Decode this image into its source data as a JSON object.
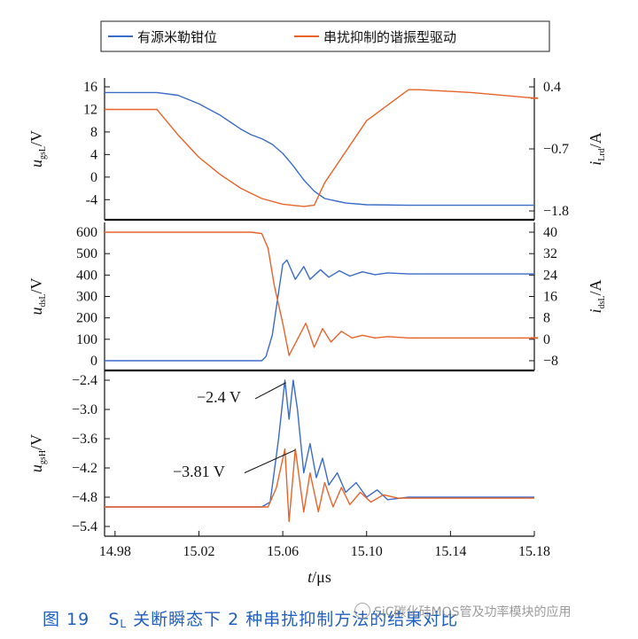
{
  "legend": [
    {
      "name": "有源米勒钳位",
      "color": "#3a6bc8"
    },
    {
      "name": "串扰抑制的谐振型驱动",
      "color": "#e8632a"
    }
  ],
  "caption": {
    "prefix": "图 19",
    "s": "S",
    "l": "L",
    "text": "关断瞬态下 2 种串扰抑制方法的结果对比"
  },
  "watermark": "SiC碳化硅MOS管及功率模块的应用",
  "chart_data": [
    {
      "type": "line",
      "panel": "top",
      "ylabel": {
        "main": "u",
        "sub": "gsL",
        "unit": "/V"
      },
      "y2label": {
        "main": "i",
        "sub": "Lrd",
        "unit": "/A"
      },
      "ylim": [
        -6,
        16
      ],
      "yticks": [
        16,
        12,
        8,
        4,
        0,
        -4
      ],
      "y2lim": [
        -1.8,
        0.4
      ],
      "y2ticks": [
        "0.4",
        "−0.7",
        "−1.8"
      ],
      "xlim": [
        14.975,
        15.18
      ],
      "series": [
        {
          "name": "有源米勒钳位",
          "color": "#3a6bc8",
          "axis": "left",
          "x": [
            14.975,
            15.0,
            15.01,
            15.02,
            15.03,
            15.04,
            15.045,
            15.05,
            15.055,
            15.06,
            15.065,
            15.07,
            15.075,
            15.08,
            15.09,
            15.1,
            15.12,
            15.15,
            15.18
          ],
          "y": [
            15.0,
            15.0,
            14.5,
            13.0,
            11.0,
            8.5,
            7.5,
            6.8,
            5.8,
            4.2,
            2.0,
            -0.5,
            -2.5,
            -3.8,
            -4.6,
            -4.9,
            -5.0,
            -5.0,
            -5.0
          ]
        },
        {
          "name": "串扰抑制的谐振型驱动",
          "color": "#e8632a",
          "axis": "right",
          "x": [
            14.975,
            15.0,
            15.01,
            15.02,
            15.03,
            15.04,
            15.05,
            15.06,
            15.07,
            15.075,
            15.08,
            15.1,
            15.12,
            15.125,
            15.15,
            15.18
          ],
          "y": [
            0.0,
            0.0,
            -0.45,
            -0.85,
            -1.15,
            -1.4,
            -1.58,
            -1.68,
            -1.72,
            -1.7,
            -1.3,
            -0.2,
            0.35,
            0.35,
            0.3,
            0.2
          ]
        }
      ]
    },
    {
      "type": "line",
      "panel": "middle",
      "ylabel": {
        "main": "u",
        "sub": "dsL",
        "unit": "/V"
      },
      "y2label": {
        "main": "i",
        "sub": "dsL",
        "unit": "/A"
      },
      "ylim": [
        0,
        600
      ],
      "yticks": [
        600,
        500,
        400,
        300,
        200,
        100,
        0
      ],
      "y2lim": [
        -8,
        40
      ],
      "y2ticks": [
        "40",
        "32",
        "24",
        "16",
        "8",
        "0",
        "−8"
      ],
      "xlim": [
        14.975,
        15.18
      ],
      "series": [
        {
          "name": "有源米勒钳位",
          "color": "#3a6bc8",
          "axis": "left",
          "x": [
            14.975,
            15.05,
            15.052,
            15.055,
            15.058,
            15.06,
            15.062,
            15.066,
            15.07,
            15.073,
            15.078,
            15.082,
            15.087,
            15.092,
            15.098,
            15.104,
            15.11,
            15.12,
            15.18
          ],
          "y": [
            0,
            0,
            20,
            120,
            320,
            450,
            470,
            380,
            440,
            380,
            425,
            390,
            420,
            395,
            415,
            402,
            410,
            405,
            405
          ]
        },
        {
          "name": "串扰抑制的谐振型驱动",
          "color": "#e8632a",
          "axis": "right",
          "x": [
            14.975,
            15.045,
            15.05,
            15.053,
            15.056,
            15.06,
            15.063,
            15.067,
            15.071,
            15.075,
            15.079,
            15.083,
            15.088,
            15.093,
            15.098,
            15.104,
            15.11,
            15.12,
            15.18
          ],
          "y": [
            40,
            40,
            39.5,
            34,
            20,
            6,
            -6,
            0,
            6,
            -3,
            4,
            -1,
            3,
            0.5,
            1.5,
            0.5,
            1,
            0.5,
            0.5
          ]
        }
      ]
    },
    {
      "type": "line",
      "panel": "bottom",
      "ylabel": {
        "main": "u",
        "sub": "gsH",
        "unit": "/V"
      },
      "ylim": [
        -5.4,
        -2.4
      ],
      "yticks": [
        "−2.4",
        "−3.0",
        "−3.6",
        "−4.2",
        "−4.8",
        "−5.4"
      ],
      "xlabel": {
        "main": "t",
        "unit": "/μs"
      },
      "xlim": [
        14.975,
        15.18
      ],
      "xticks": [
        "14.98",
        "15.02",
        "15.06",
        "15.10",
        "15.14",
        "15.18"
      ],
      "annotations": [
        "−2.4 V",
        "−3.81 V"
      ],
      "series": [
        {
          "name": "有源米勒钳位",
          "color": "#3a6bc8",
          "x": [
            14.975,
            15.05,
            15.054,
            15.058,
            15.061,
            15.063,
            15.065,
            15.067,
            15.07,
            15.073,
            15.076,
            15.079,
            15.082,
            15.086,
            15.09,
            15.095,
            15.1,
            15.105,
            15.11,
            15.12,
            15.18
          ],
          "y": [
            -5.0,
            -5.0,
            -4.9,
            -3.6,
            -2.4,
            -3.2,
            -2.4,
            -3.0,
            -4.3,
            -3.7,
            -4.4,
            -4.0,
            -4.55,
            -4.3,
            -4.7,
            -4.5,
            -4.8,
            -4.65,
            -4.85,
            -4.8,
            -4.8
          ]
        },
        {
          "name": "串扰抑制的谐振型驱动",
          "color": "#e8632a",
          "x": [
            14.975,
            15.05,
            15.053,
            15.057,
            15.061,
            15.063,
            15.066,
            15.07,
            15.073,
            15.077,
            15.08,
            15.084,
            15.088,
            15.092,
            15.097,
            15.102,
            15.108,
            15.115,
            15.18
          ],
          "y": [
            -5.0,
            -5.0,
            -5.0,
            -4.6,
            -3.81,
            -5.3,
            -3.81,
            -5.1,
            -4.3,
            -5.1,
            -4.5,
            -5.0,
            -4.6,
            -4.95,
            -4.7,
            -4.9,
            -4.75,
            -4.82,
            -4.82
          ]
        }
      ]
    }
  ]
}
